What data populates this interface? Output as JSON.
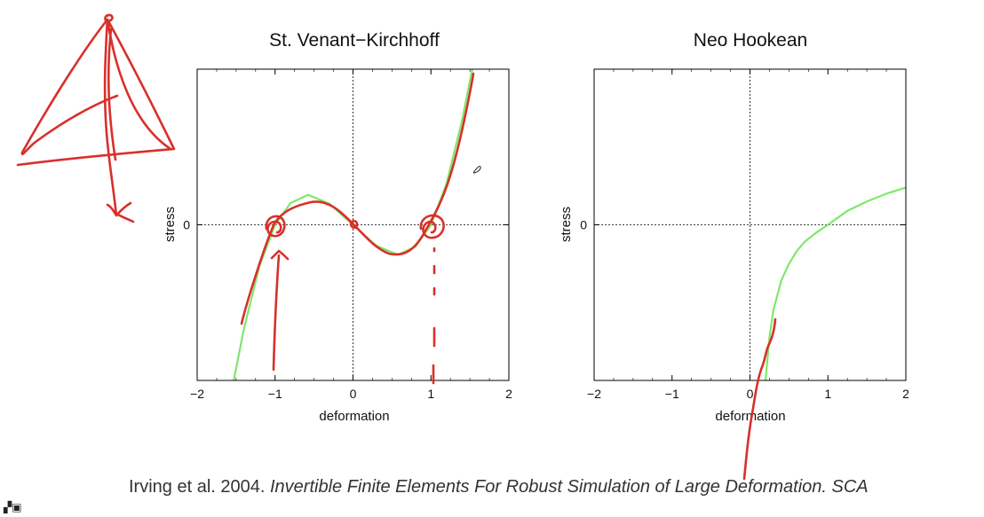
{
  "chart_data": [
    {
      "type": "line",
      "title": "St. Venant−Kirchhoff",
      "xlabel": "deformation",
      "ylabel": "stress",
      "xlim": [
        -2,
        2
      ],
      "ylim": [
        -2,
        2
      ],
      "xticks": [
        -2,
        -1,
        0,
        1,
        2
      ],
      "xtick_labels": [
        "−2",
        "−1",
        "0",
        "1",
        "2"
      ],
      "yticks": [
        0
      ],
      "ytick_labels": [
        "0"
      ],
      "zero_lines": true,
      "series": [
        {
          "color": "#7ee86a",
          "x": [
            -1.53,
            -1.4,
            -1.2,
            -1.0,
            -0.8,
            -0.577,
            -0.3,
            0.0,
            0.3,
            0.577,
            0.8,
            1.0,
            1.2,
            1.4,
            1.53
          ],
          "y": [
            -2.0,
            -1.34,
            -0.53,
            0.0,
            0.28,
            0.385,
            0.27,
            0.0,
            -0.27,
            -0.385,
            -0.28,
            0.0,
            0.53,
            1.34,
            2.0
          ]
        }
      ]
    },
    {
      "type": "line",
      "title": "Neo Hookean",
      "xlabel": "deformation",
      "ylabel": "stress",
      "xlim": [
        -2,
        2
      ],
      "ylim": [
        -2,
        2
      ],
      "xticks": [
        -2,
        -1,
        0,
        1,
        2
      ],
      "xtick_labels": [
        "−2",
        "−1",
        "0",
        "1",
        "2"
      ],
      "yticks": [
        0
      ],
      "ytick_labels": [
        "0"
      ],
      "zero_lines": true,
      "series": [
        {
          "color": "#7ee86a",
          "x": [
            0.2,
            0.25,
            0.3,
            0.4,
            0.5,
            0.6,
            0.7,
            0.85,
            1.0,
            1.25,
            1.5,
            1.75,
            2.0
          ],
          "y": [
            -2.0,
            -1.45,
            -1.1,
            -0.72,
            -0.5,
            -0.34,
            -0.22,
            -0.1,
            0.0,
            0.18,
            0.3,
            0.4,
            0.48
          ]
        }
      ]
    }
  ],
  "caption": {
    "plain": "Irving et al. 2004. ",
    "italic": "Invertible Finite Elements For Robust Simulation of Large Deformation. SCA"
  },
  "icons": {
    "corner": "qr-code-icon"
  }
}
